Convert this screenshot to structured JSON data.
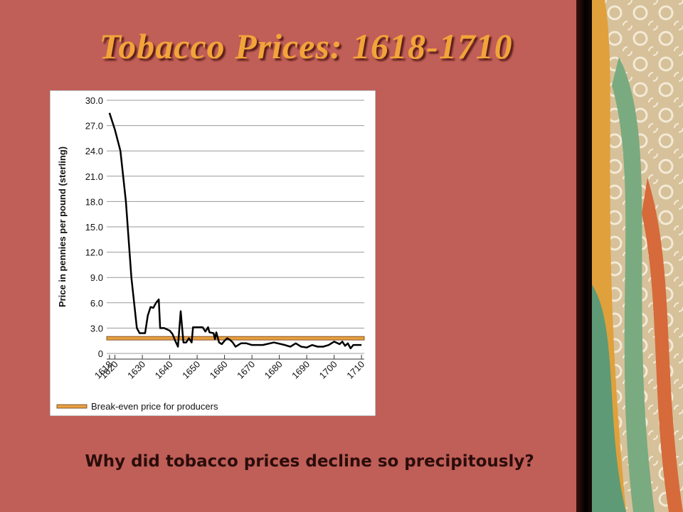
{
  "title": "Tobacco Prices:  1618-1710",
  "question": "Why did tobacco prices decline so precipitously?",
  "chart_data": {
    "type": "line",
    "y_label": "Price in pennies per pound (sterling)",
    "x": [
      1618,
      1620,
      1622,
      1624,
      1626,
      1627,
      1628,
      1629,
      1630,
      1631,
      1632,
      1633,
      1634,
      1635,
      1636,
      1636.5,
      1638,
      1640,
      1641,
      1642,
      1643,
      1644,
      1645,
      1646,
      1647,
      1648,
      1648.5,
      1650,
      1652,
      1653,
      1654,
      1654.5,
      1656,
      1656.5,
      1657,
      1658,
      1659,
      1660,
      1661,
      1662,
      1663,
      1664,
      1666,
      1668,
      1670,
      1674,
      1678,
      1682,
      1684,
      1686,
      1688,
      1690,
      1692,
      1694,
      1696,
      1698,
      1700,
      1702,
      1703,
      1704,
      1705,
      1706,
      1707,
      1708,
      1710
    ],
    "series": [
      {
        "color": "#000000",
        "values": [
          28.5,
          26.5,
          24,
          18,
          9,
          6,
          3,
          2.4,
          2.4,
          2.4,
          4.5,
          5.5,
          5.4,
          6,
          6.4,
          3,
          3,
          2.7,
          2.3,
          1.5,
          0.8,
          5,
          1.3,
          1.3,
          1.8,
          1.3,
          3.1,
          3.1,
          3.1,
          2.6,
          3.1,
          2.5,
          2.4,
          1.7,
          2.5,
          1.3,
          1.1,
          1.5,
          1.8,
          1.6,
          1.3,
          0.8,
          1.2,
          1.2,
          1.0,
          1.0,
          1.3,
          1.0,
          0.8,
          1.2,
          0.8,
          0.7,
          1.0,
          0.8,
          0.8,
          1.0,
          1.4,
          1.1,
          1.4,
          0.9,
          1.2,
          0.6,
          1.0,
          1.0,
          1.0
        ]
      }
    ],
    "reference_line": {
      "label": "Break-even price for producers",
      "value": 1.8,
      "color": "#e8a040"
    },
    "xlim": [
      1617,
      1711
    ],
    "xticks": [
      1618,
      1620,
      1630,
      1640,
      1650,
      1660,
      1670,
      1680,
      1690,
      1700,
      1710
    ],
    "ylim": [
      0,
      30
    ],
    "yticks": [
      0,
      {
        "value": 3,
        "label": "3.0"
      },
      {
        "value": 6,
        "label": "6.0"
      },
      {
        "value": 9,
        "label": "9.0"
      },
      {
        "value": 12,
        "label": "12.0"
      },
      {
        "value": 15,
        "label": "15.0"
      },
      {
        "value": 18,
        "label": "18.0"
      },
      {
        "value": 21,
        "label": "21.0"
      },
      {
        "value": 24,
        "label": "24.0"
      },
      {
        "value": 27,
        "label": "27.0"
      },
      {
        "value": 30,
        "label": "30.0"
      }
    ],
    "grid": true
  }
}
